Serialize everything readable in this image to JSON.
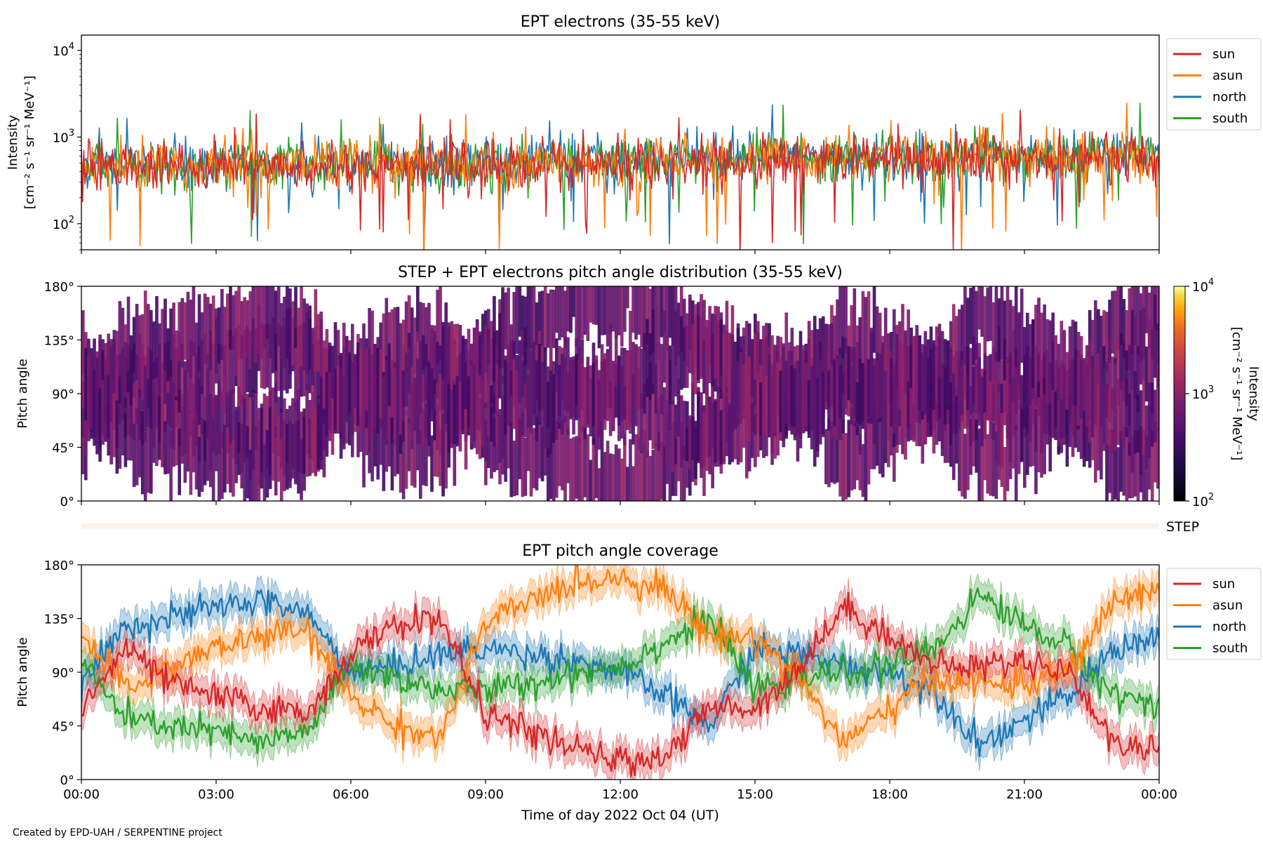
{
  "figure": {
    "xlabel": "Time of day 2022 Oct 04 (UT)",
    "credit": "Created by EPD-UAH / SERPENTINE project",
    "x_ticks": [
      "00:00",
      "03:00",
      "06:00",
      "09:00",
      "12:00",
      "15:00",
      "18:00",
      "21:00",
      "00:00"
    ]
  },
  "chart_data": [
    {
      "type": "line",
      "title": "EPT electrons (35-55 keV)",
      "ylabel_line1": "Intensity",
      "ylabel_line2": "[cm⁻² s⁻¹ sr⁻¹ MeV⁻¹]",
      "yscale": "log",
      "ylim": [
        50,
        15000
      ],
      "y_ticks": [
        {
          "value": 100,
          "base": "10",
          "exp": "2"
        },
        {
          "value": 1000,
          "base": "10",
          "exp": "3"
        },
        {
          "value": 10000,
          "base": "10",
          "exp": "4"
        }
      ],
      "xlim_hours": [
        0,
        24
      ],
      "legend_position": "outside top-right",
      "series": [
        {
          "name": "sun",
          "color": "#d62728",
          "x_hours": [
            0,
            1,
            2,
            3,
            4,
            5,
            6,
            7,
            8,
            9,
            10,
            11,
            12,
            13,
            14,
            15,
            16,
            17,
            18,
            19,
            20,
            21,
            22,
            23,
            24
          ],
          "values": [
            450,
            420,
            430,
            440,
            450,
            430,
            460,
            470,
            450,
            480,
            470,
            500,
            480,
            490,
            500,
            520,
            540,
            560,
            550,
            540,
            560,
            530,
            550,
            580,
            560
          ]
        },
        {
          "name": "asun",
          "color": "#ff7f0e",
          "x_hours": [
            0,
            1,
            2,
            3,
            4,
            5,
            6,
            7,
            8,
            9,
            10,
            11,
            12,
            13,
            14,
            15,
            16,
            17,
            18,
            19,
            20,
            21,
            22,
            23,
            24
          ],
          "values": [
            480,
            470,
            460,
            470,
            490,
            480,
            500,
            480,
            470,
            500,
            520,
            510,
            500,
            520,
            530,
            540,
            560,
            600,
            580,
            560,
            590,
            570,
            600,
            620,
            590
          ]
        },
        {
          "name": "north",
          "color": "#1f77b4",
          "x_hours": [
            0,
            1,
            2,
            3,
            4,
            5,
            6,
            7,
            8,
            9,
            10,
            11,
            12,
            13,
            14,
            15,
            16,
            17,
            18,
            19,
            20,
            21,
            22,
            23,
            24
          ],
          "values": [
            500,
            480,
            470,
            490,
            500,
            490,
            510,
            490,
            480,
            510,
            530,
            520,
            510,
            530,
            540,
            550,
            580,
            620,
            600,
            580,
            600,
            590,
            610,
            630,
            600
          ]
        },
        {
          "name": "south",
          "color": "#2ca02c",
          "x_hours": [
            0,
            1,
            2,
            3,
            4,
            5,
            6,
            7,
            8,
            9,
            10,
            11,
            12,
            13,
            14,
            15,
            16,
            17,
            18,
            19,
            20,
            21,
            22,
            23,
            24
          ],
          "values": [
            490,
            470,
            460,
            480,
            490,
            480,
            500,
            490,
            470,
            500,
            520,
            510,
            500,
            520,
            530,
            540,
            570,
            610,
            590,
            570,
            590,
            580,
            600,
            620,
            590
          ]
        }
      ]
    },
    {
      "type": "heatmap",
      "title": "STEP + EPT electrons pitch angle distribution (35-55 keV)",
      "ylabel": "Pitch angle",
      "ylim": [
        0,
        180
      ],
      "y_ticks": [
        "0°",
        "45°",
        "90°",
        "135°",
        "180°"
      ],
      "xlim_hours": [
        0,
        24
      ],
      "colormap": "inferno",
      "colorbar_scale": "log",
      "colorbar_range": [
        100,
        10000
      ],
      "colorbar_ticks": [
        {
          "value": 100,
          "base": "10",
          "exp": "2"
        },
        {
          "value": 1000,
          "base": "10",
          "exp": "3"
        },
        {
          "value": 10000,
          "base": "10",
          "exp": "4"
        }
      ],
      "colorbar_label_line1": "Intensity",
      "colorbar_label_line2": "[cm⁻² s⁻¹ sr⁻¹ MeV⁻¹]",
      "typical_intensity": 500
    },
    {
      "type": "bar",
      "label": "STEP",
      "color": "#fdf1ec"
    },
    {
      "type": "area",
      "title": "EPT pitch angle coverage",
      "ylabel": "Pitch angle",
      "ylim": [
        0,
        180
      ],
      "y_ticks": [
        "0°",
        "45°",
        "90°",
        "135°",
        "180°"
      ],
      "xlim_hours": [
        0,
        24
      ],
      "legend_position": "outside top-right",
      "band_halfwidth_deg": 12,
      "series": [
        {
          "name": "sun",
          "color": "#d62728",
          "x_hours": [
            0,
            1,
            2,
            3,
            4,
            5,
            6,
            7,
            8,
            9,
            10,
            11,
            12,
            13,
            14,
            15,
            16,
            17,
            18,
            19,
            20,
            21,
            22,
            23,
            24
          ],
          "values": [
            60,
            110,
            80,
            70,
            60,
            55,
            105,
            130,
            135,
            55,
            40,
            25,
            15,
            20,
            60,
            60,
            95,
            145,
            120,
            95,
            95,
            100,
            90,
            30,
            25
          ]
        },
        {
          "name": "asun",
          "color": "#ff7f0e",
          "x_hours": [
            0,
            1,
            2,
            3,
            4,
            5,
            6,
            7,
            8,
            9,
            10,
            11,
            12,
            13,
            14,
            15,
            16,
            17,
            18,
            19,
            20,
            21,
            22,
            23,
            24
          ],
          "values": [
            120,
            75,
            95,
            110,
            120,
            125,
            70,
            45,
            35,
            130,
            150,
            165,
            170,
            160,
            120,
            120,
            85,
            30,
            60,
            85,
            80,
            80,
            90,
            150,
            160
          ]
        },
        {
          "name": "north",
          "color": "#1f77b4",
          "x_hours": [
            0,
            1,
            2,
            3,
            4,
            5,
            6,
            7,
            8,
            9,
            10,
            11,
            12,
            13,
            14,
            15,
            16,
            17,
            18,
            19,
            20,
            21,
            22,
            23,
            24
          ],
          "values": [
            80,
            130,
            135,
            145,
            150,
            140,
            90,
            95,
            105,
            110,
            105,
            100,
            90,
            70,
            45,
            110,
            105,
            95,
            90,
            75,
            30,
            50,
            70,
            110,
            120
          ]
        },
        {
          "name": "south",
          "color": "#2ca02c",
          "x_hours": [
            0,
            1,
            2,
            3,
            4,
            5,
            6,
            7,
            8,
            9,
            10,
            11,
            12,
            13,
            14,
            15,
            16,
            17,
            18,
            19,
            20,
            21,
            22,
            23,
            24
          ],
          "values": [
            100,
            50,
            45,
            40,
            30,
            40,
            95,
            85,
            75,
            75,
            80,
            90,
            95,
            115,
            135,
            75,
            85,
            90,
            95,
            110,
            155,
            130,
            110,
            70,
            65
          ]
        }
      ]
    }
  ]
}
